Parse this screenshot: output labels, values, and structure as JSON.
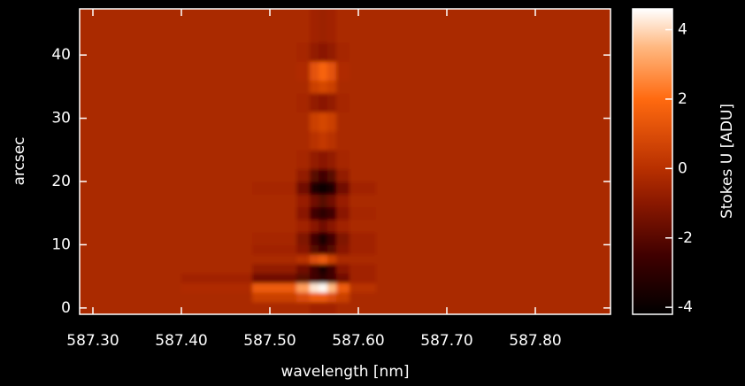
{
  "chart_data": {
    "type": "heatmap",
    "xlabel": "wavelength [nm]",
    "ylabel": "arcsec",
    "colorbar_label": "Stokes U [ADU]",
    "xlim": [
      587.285,
      587.885
    ],
    "ylim": [
      -1,
      47.3
    ],
    "zlim": [
      -4.2,
      4.6
    ],
    "xticks": [
      {
        "value": 587.3,
        "label": "587.30"
      },
      {
        "value": 587.4,
        "label": "587.40"
      },
      {
        "value": 587.5,
        "label": "587.50"
      },
      {
        "value": 587.6,
        "label": "587.60"
      },
      {
        "value": 587.7,
        "label": "587.70"
      },
      {
        "value": 587.8,
        "label": "587.80"
      }
    ],
    "yticks": [
      0,
      10,
      20,
      30,
      40
    ],
    "zticks": [
      -4,
      -2,
      0,
      2,
      4
    ],
    "colorscale": [
      [
        -4.2,
        "#000000"
      ],
      [
        -2.5,
        "#400000"
      ],
      [
        -1,
        "#8a1800"
      ],
      [
        0,
        "#b83000"
      ],
      [
        2,
        "#ff6a10"
      ],
      [
        3.5,
        "#ffb880"
      ],
      [
        4.6,
        "#ffffff"
      ]
    ],
    "x_edges": [
      587.285,
      587.4,
      587.48,
      587.53,
      587.545,
      587.555,
      587.565,
      587.575,
      587.59,
      587.62,
      587.885
    ],
    "y_edges": [
      -1,
      1,
      2.5,
      4,
      5.5,
      7,
      8.5,
      10,
      12,
      14,
      16,
      18,
      20,
      22,
      25,
      28,
      31,
      34,
      36,
      39,
      42,
      47.3
    ],
    "z": [
      [
        -0.3,
        -0.3,
        -0.3,
        -0.3,
        -0.5,
        -0.5,
        -0.5,
        -0.3,
        -0.3,
        -0.3
      ],
      [
        -0.3,
        -0.3,
        0.5,
        1,
        1.5,
        1.5,
        1,
        0.5,
        -0.3,
        -0.3
      ],
      [
        -0.3,
        -0.2,
        1.5,
        3,
        4.2,
        4.5,
        3.5,
        1.5,
        0,
        -0.3
      ],
      [
        -0.3,
        -0.5,
        -1.5,
        -2,
        -2.5,
        -3,
        -2.5,
        -1.5,
        -0.5,
        -0.3
      ],
      [
        -0.3,
        -0.3,
        -0.8,
        -1.5,
        -2.5,
        -3.5,
        -2.5,
        -1,
        -0.5,
        -0.3
      ],
      [
        -0.3,
        -0.3,
        -0.3,
        0,
        1,
        1.5,
        0.5,
        -0.3,
        -0.3,
        -0.3
      ],
      [
        -0.3,
        -0.3,
        -0.5,
        -1,
        -2,
        -2.5,
        -2,
        -1,
        -0.5,
        -0.3
      ],
      [
        -0.3,
        -0.3,
        -0.4,
        -1.2,
        -2.5,
        -3.5,
        -2.5,
        -1.2,
        -0.5,
        -0.3
      ],
      [
        -0.3,
        -0.3,
        -0.3,
        -0.5,
        -1,
        -1.5,
        -1,
        -0.5,
        -0.3,
        -0.3
      ],
      [
        -0.3,
        -0.3,
        -0.3,
        -1,
        -2.5,
        -3,
        -2.5,
        -1,
        -0.4,
        -0.3
      ],
      [
        -0.3,
        -0.3,
        -0.3,
        -0.7,
        -1.5,
        -2,
        -1.5,
        -0.7,
        -0.3,
        -0.3
      ],
      [
        -0.3,
        -0.3,
        -0.4,
        -1.5,
        -3.5,
        -4,
        -3.5,
        -1.5,
        -0.5,
        -0.3
      ],
      [
        -0.3,
        -0.3,
        -0.3,
        -0.8,
        -2,
        -2.5,
        -2,
        -0.8,
        -0.3,
        -0.3
      ],
      [
        -0.3,
        -0.3,
        -0.3,
        -0.4,
        -0.8,
        -1,
        -0.8,
        -0.4,
        -0.3,
        -0.3
      ],
      [
        -0.3,
        -0.3,
        -0.3,
        -0.3,
        0,
        0.3,
        0,
        -0.3,
        -0.3,
        -0.3
      ],
      [
        -0.3,
        -0.3,
        -0.3,
        -0.3,
        0.5,
        0.8,
        0.5,
        -0.3,
        -0.3,
        -0.3
      ],
      [
        -0.3,
        -0.3,
        -0.3,
        -0.4,
        -0.8,
        -1,
        -0.8,
        -0.4,
        -0.3,
        -0.3
      ],
      [
        -0.3,
        -0.3,
        -0.3,
        -0.3,
        0.5,
        0.8,
        0.5,
        -0.3,
        -0.3,
        -0.3
      ],
      [
        -0.3,
        -0.3,
        -0.3,
        -0.2,
        1.2,
        1.8,
        1.2,
        -0.2,
        -0.3,
        -0.3
      ],
      [
        -0.3,
        -0.3,
        -0.3,
        -0.4,
        -0.8,
        -1,
        -0.8,
        -0.4,
        -0.3,
        -0.3
      ],
      [
        -0.3,
        -0.3,
        -0.3,
        -0.3,
        -0.5,
        -0.6,
        -0.5,
        -0.3,
        -0.3,
        -0.3
      ]
    ]
  }
}
